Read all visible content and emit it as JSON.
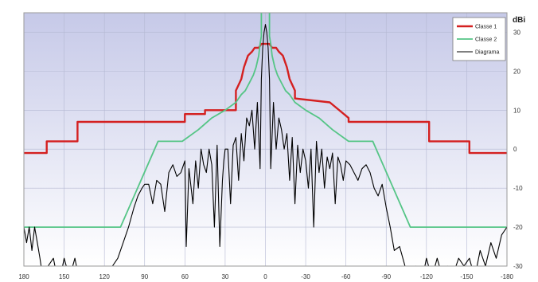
{
  "chart_data": {
    "type": "line",
    "unit_label": "dBi",
    "x_axis": {
      "reversed": true,
      "xlim": [
        180,
        -180
      ],
      "ticks": [
        180,
        150,
        120,
        90,
        60,
        30,
        0,
        -30,
        -60,
        -90,
        -120,
        -150,
        -180
      ],
      "tick_labels": [
        "180",
        "150",
        "120",
        "90",
        "60",
        "30",
        "0",
        "-30",
        "-60",
        "-90",
        "-120",
        "-150",
        "-180"
      ]
    },
    "y_axis": {
      "position": "right",
      "ylim": [
        -30,
        35
      ],
      "ticks": [
        -30,
        -20,
        -10,
        0,
        10,
        20,
        30
      ],
      "tick_labels": [
        "-30",
        "-20",
        "-10",
        "0",
        "10",
        "20",
        "30"
      ]
    },
    "grid": true,
    "legend_position": "top-right",
    "background_gradient": [
      "#c6c9e8",
      "#ffffff"
    ],
    "series": [
      {
        "name": "Classe 1",
        "color": "#d42020",
        "x": [
          180,
          163,
          163,
          140,
          140,
          122,
          122,
          60,
          60,
          45,
          45,
          22,
          22,
          18,
          16,
          13,
          10,
          8,
          5,
          3,
          1,
          0,
          -1,
          -3,
          -5,
          -8,
          -10,
          -13,
          -16,
          -18,
          -22,
          -22,
          -48,
          -48,
          -62,
          -62,
          -122,
          -122,
          -152,
          -152,
          -180
        ],
        "y": [
          -1,
          -1,
          2,
          2,
          7,
          7,
          7,
          7,
          9,
          9,
          10,
          10,
          15,
          18,
          21,
          24,
          25,
          26,
          26,
          27,
          27,
          27,
          27,
          27,
          26,
          26,
          25,
          24,
          21,
          18,
          15,
          13,
          12,
          12,
          8,
          7,
          7,
          2,
          2,
          -1,
          -1
        ]
      },
      {
        "name": "Classe 2",
        "color": "#55c586",
        "x": [
          180,
          108,
          80,
          62,
          50,
          40,
          30,
          22,
          18,
          15,
          12,
          9,
          7,
          5,
          4,
          3,
          3,
          -3,
          -3,
          -4,
          -5,
          -7,
          -9,
          -12,
          -15,
          -18,
          -22,
          -30,
          -40,
          -50,
          -62,
          -80,
          -108,
          -180
        ],
        "y": [
          -20,
          -20,
          2,
          2,
          5,
          8,
          10,
          12,
          14,
          15,
          17,
          19,
          21,
          24,
          27,
          29,
          40,
          40,
          29,
          27,
          24,
          21,
          19,
          17,
          15,
          14,
          12,
          10,
          8,
          5,
          2,
          2,
          -20,
          -20
        ]
      },
      {
        "name": "Diagrama",
        "color": "#000000",
        "x": [
          180,
          178,
          176,
          174,
          172,
          170,
          168,
          165,
          162,
          158,
          154,
          150,
          146,
          142,
          138,
          134,
          130,
          126,
          122,
          118,
          114,
          110,
          106,
          102,
          98,
          95,
          92,
          90,
          87,
          84,
          81,
          78,
          75,
          72,
          69,
          66,
          63,
          60,
          59,
          57,
          54,
          52,
          50,
          48,
          46,
          44,
          42,
          40,
          38,
          36,
          34,
          32,
          31,
          30,
          28,
          26,
          24,
          22,
          20,
          18,
          16,
          14,
          12,
          10,
          8,
          6,
          4,
          3,
          2,
          1,
          0,
          -1,
          -2,
          -3,
          -4,
          -6,
          -8,
          -10,
          -12,
          -14,
          -16,
          -18,
          -20,
          -22,
          -24,
          -26,
          -28,
          -30,
          -32,
          -34,
          -36,
          -38,
          -40,
          -42,
          -44,
          -46,
          -48,
          -50,
          -52,
          -54,
          -56,
          -58,
          -60,
          -63,
          -66,
          -69,
          -72,
          -75,
          -78,
          -81,
          -84,
          -87,
          -90,
          -93,
          -96,
          -100,
          -104,
          -108,
          -112,
          -116,
          -120,
          -124,
          -128,
          -132,
          -136,
          -140,
          -144,
          -148,
          -152,
          -156,
          -160,
          -164,
          -168,
          -172,
          -176,
          -180
        ],
        "y": [
          -20,
          -24,
          -20,
          -26,
          -20,
          -24,
          -28,
          -35,
          -30,
          -28,
          -35,
          -28,
          -33,
          -28,
          -35,
          -32,
          -35,
          -35,
          -33,
          -35,
          -30,
          -28,
          -24,
          -20,
          -15,
          -12,
          -10,
          -9,
          -9,
          -14,
          -8,
          -9,
          -16,
          -6,
          -4,
          -7,
          -6,
          -3,
          -25,
          -5,
          -14,
          -3,
          -10,
          0,
          -4,
          -6,
          0,
          -4,
          -20,
          1,
          -25,
          -8,
          -3,
          0,
          0,
          -14,
          1,
          3,
          -8,
          4,
          -3,
          8,
          6,
          10,
          0,
          12,
          -5,
          18,
          26,
          30,
          32,
          30,
          26,
          18,
          -5,
          12,
          0,
          8,
          5,
          0,
          4,
          -8,
          3,
          -14,
          1,
          -6,
          0,
          -3,
          -10,
          0,
          -20,
          2,
          -6,
          0,
          -10,
          -2,
          -5,
          -1,
          -14,
          -2,
          -4,
          -8,
          -3,
          -4,
          -6,
          -8,
          -5,
          -4,
          -6,
          -10,
          -12,
          -9,
          -15,
          -20,
          -26,
          -25,
          -30,
          -33,
          -30,
          -35,
          -28,
          -33,
          -28,
          -33,
          -30,
          -32,
          -28,
          -30,
          -28,
          -33,
          -26,
          -30,
          -24,
          -28,
          -22,
          -20
        ]
      }
    ]
  }
}
